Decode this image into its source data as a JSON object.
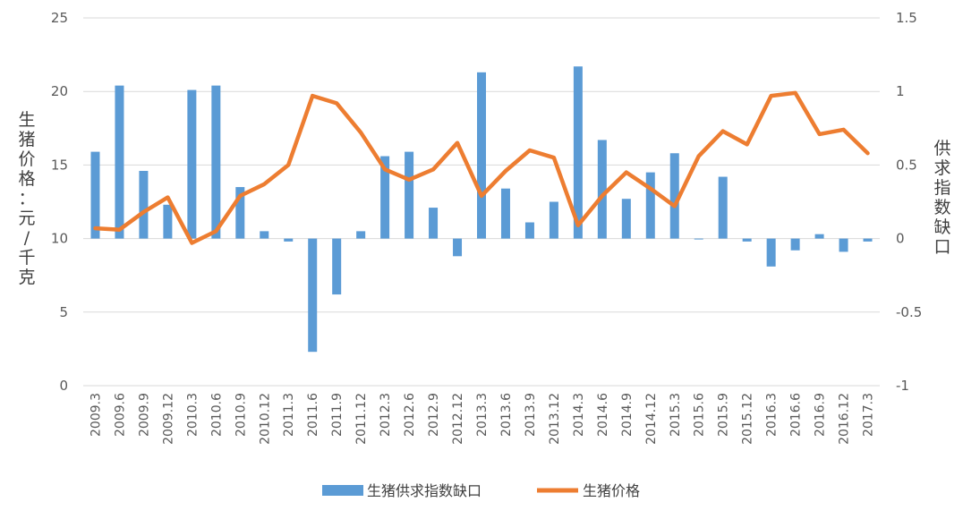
{
  "chart_data": {
    "type": "bar+line",
    "categories": [
      "2009.3",
      "2009.6",
      "2009.9",
      "2009.12",
      "2010.3",
      "2010.6",
      "2010.9",
      "2010.12",
      "2011.3",
      "2011.6",
      "2011.9",
      "2011.12",
      "2012.3",
      "2012.6",
      "2012.9",
      "2012.12",
      "2013.3",
      "2013.6",
      "2013.9",
      "2013.12",
      "2014.3",
      "2014.6",
      "2014.9",
      "2014.12",
      "2015.3",
      "2015.6",
      "2015.9",
      "2015.12",
      "2016.3",
      "2016.6",
      "2016.9",
      "2016.12",
      "2017.3"
    ],
    "series": [
      {
        "name": "生猪供求指数缺口",
        "type": "bar",
        "axis": "right",
        "color": "#5B9BD5",
        "values": [
          0.59,
          1.04,
          0.46,
          0.23,
          1.01,
          1.04,
          0.35,
          0.05,
          -0.02,
          -0.77,
          -0.38,
          0.05,
          0.56,
          0.59,
          0.21,
          -0.12,
          1.13,
          0.34,
          0.11,
          0.25,
          1.17,
          0.67,
          0.27,
          0.45,
          0.58,
          0.0,
          0.42,
          -0.02,
          -0.19,
          -0.08,
          0.03,
          -0.09,
          -0.02
        ]
      },
      {
        "name": "生猪价格",
        "type": "line",
        "axis": "left",
        "color": "#ED7D31",
        "values": [
          10.7,
          10.6,
          11.8,
          12.8,
          9.7,
          10.5,
          12.9,
          13.7,
          15.0,
          19.7,
          19.2,
          17.2,
          14.7,
          14.0,
          14.7,
          16.5,
          12.9,
          14.6,
          16.0,
          15.5,
          10.9,
          12.9,
          14.5,
          13.4,
          12.2,
          15.6,
          17.3,
          16.4,
          19.7,
          19.9,
          17.1,
          17.4,
          15.8
        ]
      }
    ],
    "y_left": {
      "label": "生猪价格：元/千克",
      "min": 0,
      "max": 25,
      "ticks": [
        "0",
        "5",
        "10",
        "15",
        "20",
        "25"
      ]
    },
    "y_right": {
      "label": "供求指数缺口",
      "min": -1,
      "max": 1.5,
      "ticks": [
        "-1",
        "-0.5",
        "0",
        "0.5",
        "1",
        "1.5"
      ]
    },
    "grid": true,
    "legend": "bottom"
  }
}
